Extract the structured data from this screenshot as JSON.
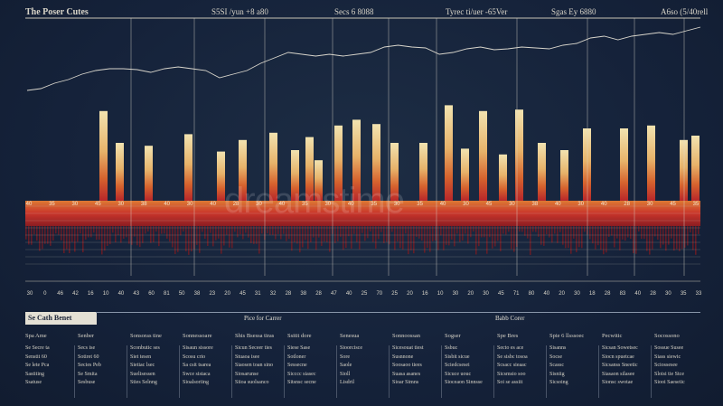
{
  "header": {
    "title": "The Poser Cutes",
    "labels": [
      "S5SI /yun +8 a80",
      "Secs 6 8088",
      "Tyrec ti/uer -65Ver",
      "Sgas Ey 6880",
      "A6so (5/40rell"
    ]
  },
  "watermark": "dreamstime",
  "chart_data": {
    "type": "bar",
    "title": "The Poser Cutes",
    "tall_bars": [
      {
        "x": 110,
        "v": 62
      },
      {
        "x": 128,
        "v": 40
      },
      {
        "x": 160,
        "v": 38
      },
      {
        "x": 204,
        "v": 46
      },
      {
        "x": 240,
        "v": 34
      },
      {
        "x": 264,
        "v": 42
      },
      {
        "x": 298,
        "v": 47
      },
      {
        "x": 322,
        "v": 35
      },
      {
        "x": 338,
        "v": 44
      },
      {
        "x": 348,
        "v": 28
      },
      {
        "x": 370,
        "v": 52
      },
      {
        "x": 390,
        "v": 56
      },
      {
        "x": 412,
        "v": 53
      },
      {
        "x": 432,
        "v": 40
      },
      {
        "x": 464,
        "v": 40
      },
      {
        "x": 492,
        "v": 66
      },
      {
        "x": 510,
        "v": 36
      },
      {
        "x": 530,
        "v": 62
      },
      {
        "x": 552,
        "v": 32
      },
      {
        "x": 570,
        "v": 63
      },
      {
        "x": 595,
        "v": 40
      },
      {
        "x": 620,
        "v": 35
      },
      {
        "x": 645,
        "v": 50
      },
      {
        "x": 686,
        "v": 50
      },
      {
        "x": 716,
        "v": 52
      },
      {
        "x": 752,
        "v": 42
      },
      {
        "x": 765,
        "v": 45
      }
    ],
    "line": [
      10,
      12,
      18,
      22,
      28,
      32,
      34,
      34,
      33,
      30,
      34,
      36,
      34,
      32,
      24,
      28,
      32,
      40,
      46,
      52,
      50,
      48,
      50,
      48,
      50,
      52,
      58,
      60,
      58,
      57,
      50,
      52,
      56,
      58,
      55,
      56,
      58,
      57,
      56,
      60,
      62,
      68,
      70,
      66,
      70,
      72,
      74,
      72,
      76,
      80
    ],
    "x_ticks": [
      "30",
      "0",
      "46",
      "42",
      "16",
      "10",
      "40",
      "43",
      "60",
      "81",
      "50",
      "38",
      "23",
      "20",
      "45",
      "31",
      "32",
      "28",
      "38",
      "28",
      "47",
      "40",
      "25",
      "70",
      "25",
      "20",
      "16",
      "10",
      "30",
      "20",
      "30",
      "45",
      "71",
      "80",
      "40",
      "20",
      "30",
      "18",
      "28",
      "83",
      "40",
      "28",
      "30",
      "35",
      "33"
    ],
    "mid_ticks": [
      "40",
      "35",
      "30",
      "45",
      "30",
      "38",
      "40",
      "30",
      "40",
      "28",
      "30",
      "40",
      "35",
      "30",
      "40",
      "35",
      "30",
      "35",
      "40",
      "30",
      "45",
      "30",
      "38",
      "40",
      "30",
      "40",
      "28",
      "30",
      "45",
      "35"
    ]
  },
  "panel": {
    "tag": "Se Cath Benet",
    "mid_label": "Pice for Carrer",
    "right_label": "Babb Corer"
  },
  "columns": [
    {
      "head": "Spa Ame",
      "rows": [
        "Se Secre ta",
        "Senstit    60",
        "Se lete Pca",
        "Sastiting",
        "Ssatuse"
      ]
    },
    {
      "head": "Senber",
      "rows": [
        "Secs ise",
        "Sotiret    60",
        "Secies Peb",
        "Se Smita",
        "Sesbuse"
      ]
    },
    {
      "head": "Sonsoras tine",
      "rows": [
        "Sconbutic ses",
        "Siet tesen",
        "Sietiac lsec",
        "Suelisessen",
        "Sties Selnng"
      ]
    },
    {
      "head": "Sonnessoare",
      "rows": [
        "Sisaun sissore",
        "Scosu crio",
        "Sa csit tsarea",
        "Swce sistaca",
        "Sioalsoriing"
      ]
    },
    {
      "head": "Shis Bsessa tiras",
      "rows": [
        "Sicun Seceer ties",
        "Stuaoa isee",
        "Siaosen toan sino",
        "Siosarunse",
        "Siioa suolsanco"
      ]
    },
    {
      "head": "Ssitit dore",
      "rows": [
        "Siese Sase",
        "Sotloner",
        "Sessecne",
        "Sicccc siasec",
        "Sitsnsc secne"
      ]
    },
    {
      "head": "Senesua",
      "rows": [
        "Sioorcisce",
        "Sore",
        "Saole",
        "Sioll",
        "Lisdrtl"
      ]
    },
    {
      "head": "Sonnoossan",
      "rows": [
        "Sicesouat tiest",
        "Susnnone",
        "Soosaoo tiees",
        "Suasa asanes",
        "Sioar Simns"
      ]
    },
    {
      "head": "Sogser",
      "rows": [
        "Ssbuc",
        "Sisbit sicue",
        "Sciedcsesei",
        "Sicuce uouc",
        "Sioceaon Sinnsse"
      ]
    },
    {
      "head": "Spe Bres",
      "rows": [
        "Secto es ace",
        "Se sisbc tosoa",
        "Scsacc sieaac",
        "Sicsmsio soo",
        "Soi se assiit"
      ]
    },
    {
      "head": "Spie 6 llsssoec",
      "rows": [
        "Sisanns",
        "Socse",
        "Scassc",
        "Sisniig",
        "Sicsoing"
      ]
    },
    {
      "head": "Pecwitic",
      "rows": [
        "Sicsan Sowetsec",
        "Siocn spuetcae",
        "Sicsanss Sneetic",
        "Siasaon silasee",
        "Sionsc swotae"
      ]
    },
    {
      "head": "Socossono",
      "rows": [
        "Sossue Susee",
        "Siass siewic",
        "Sciossesee",
        "Sloisi tie Stce",
        "Siooi Saeseiic"
      ]
    }
  ]
}
